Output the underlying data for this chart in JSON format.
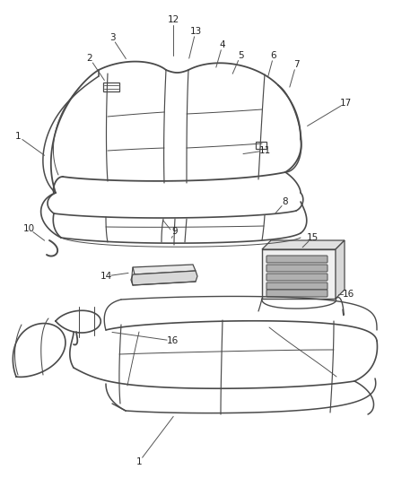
{
  "bg_color": "#ffffff",
  "line_color": "#4a4a4a",
  "label_color": "#222222",
  "label_fontsize": 7.5,
  "fig_width": 4.38,
  "fig_height": 5.33,
  "dpi": 100
}
